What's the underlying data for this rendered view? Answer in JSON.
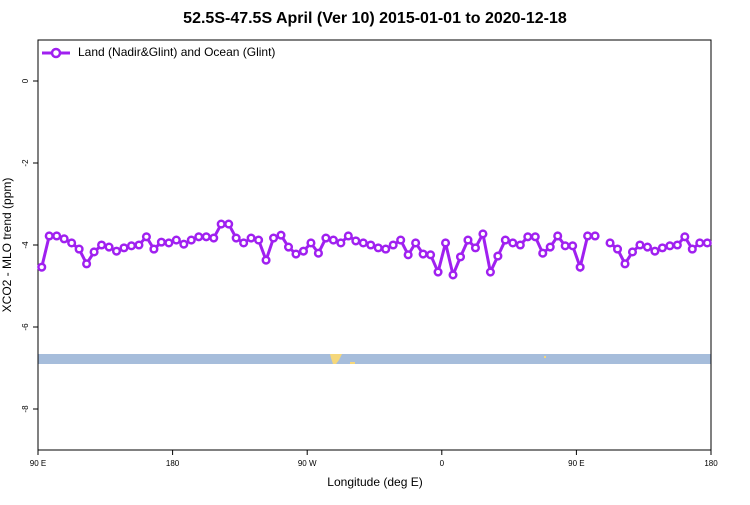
{
  "chart_data": {
    "type": "line",
    "title": "52.5S-47.5S April (Ver 10)   2015-01-01 to 2020-12-18",
    "xlabel": "Longitude (deg E)",
    "ylabel": "XCO2 - MLO trend (ppm)",
    "x": [
      92.5,
      97.5,
      102.5,
      107.5,
      112.5,
      117.5,
      122.5,
      127.5,
      132.5,
      137.5,
      142.5,
      147.5,
      152.5,
      157.5,
      162.5,
      167.5,
      172.5,
      177.5,
      182.5,
      187.5,
      192.5,
      197.5,
      202.5,
      207.5,
      212.5,
      217.5,
      222.5,
      227.5,
      232.5,
      237.5,
      242.5,
      247.5,
      252.5,
      257.5,
      262.5,
      267.5,
      272.5,
      277.5,
      282.5,
      287.5,
      292.5,
      297.5,
      302.5,
      307.5,
      312.5,
      317.5,
      322.5,
      327.5,
      332.5,
      337.5,
      342.5,
      347.5,
      352.5,
      357.5,
      362.5,
      367.5,
      372.5,
      377.5,
      382.5,
      387.5,
      392.5,
      397.5,
      402.5,
      407.5,
      412.5,
      417.5,
      422.5,
      427.5,
      432.5,
      437.5,
      442.5,
      447.5,
      452.5,
      457.5,
      462.5,
      467.5,
      472.5,
      477.5,
      482.5,
      487.5,
      492.5,
      497.5,
      502.5,
      507.5,
      512.5,
      517.5,
      522.5,
      527.5,
      532.5,
      537.5
    ],
    "series": [
      {
        "name": "Land (Nadir&Glint) and Ocean (Glint)",
        "color": "#a020f0",
        "values": [
          -4.54,
          -3.78,
          -3.78,
          -3.85,
          -3.95,
          -4.1,
          -4.46,
          -4.17,
          -4.0,
          -4.05,
          -4.15,
          -4.07,
          -4.02,
          -4.0,
          -3.8,
          -4.1,
          -3.93,
          -3.95,
          -3.88,
          -3.98,
          -3.88,
          -3.8,
          -3.8,
          -3.83,
          -3.49,
          -3.49,
          -3.83,
          -3.95,
          -3.83,
          -3.88,
          -4.37,
          -3.83,
          -3.76,
          -4.05,
          -4.22,
          -4.15,
          -3.95,
          -4.2,
          -3.83,
          -3.88,
          -3.95,
          -3.78,
          -3.9,
          -3.95,
          -4.0,
          -4.07,
          -4.1,
          -4.0,
          -3.88,
          -4.24,
          -3.95,
          -4.22,
          -4.24,
          -4.66,
          -3.95,
          -4.73,
          -4.29,
          -3.88,
          -4.07,
          -3.73,
          -4.66,
          -4.27,
          -3.88,
          -3.95,
          -4.0,
          -3.8,
          -3.8,
          -4.2,
          -4.05,
          -3.78,
          -4.02,
          -4.02,
          -4.54,
          -3.78,
          -3.78,
          null,
          -3.95,
          -4.1,
          -4.46,
          -4.17,
          -4.0,
          -4.05,
          -4.15,
          -4.07,
          -4.02,
          -4.0,
          -3.8,
          -4.1,
          -3.95,
          -3.95
        ]
      }
    ],
    "xlim": [
      90,
      540
    ],
    "xticks": [
      {
        "value": 90,
        "label": "90 E"
      },
      {
        "value": 180,
        "label": "180"
      },
      {
        "value": 270,
        "label": "90 W"
      },
      {
        "value": 360,
        "label": "0"
      },
      {
        "value": 450,
        "label": "90 E"
      },
      {
        "value": 540,
        "label": "180"
      }
    ],
    "ylim": [
      -9,
      1
    ],
    "yticks": [
      0,
      -2,
      -4,
      -6,
      -8
    ],
    "legend": "top-left"
  }
}
